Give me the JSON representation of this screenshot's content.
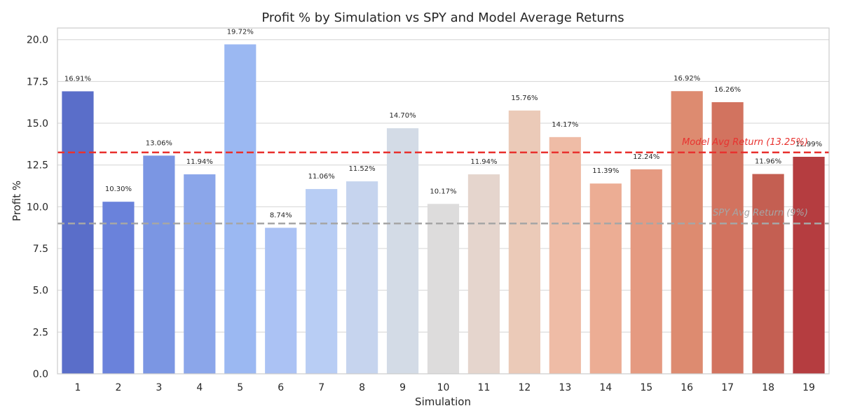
{
  "chart_data": {
    "type": "bar",
    "title": "Profit % by Simulation vs SPY and Model Average Returns",
    "xlabel": "Simulation",
    "ylabel": "Profit %",
    "ylim": [
      0,
      20.7
    ],
    "yticks": [
      0.0,
      2.5,
      5.0,
      7.5,
      10.0,
      12.5,
      15.0,
      17.5,
      20.0
    ],
    "ytick_labels": [
      "0.0",
      "2.5",
      "5.0",
      "7.5",
      "10.0",
      "12.5",
      "15.0",
      "17.5",
      "20.0"
    ],
    "grid": true,
    "categories": [
      "1",
      "2",
      "3",
      "4",
      "5",
      "6",
      "7",
      "8",
      "9",
      "10",
      "11",
      "12",
      "13",
      "14",
      "15",
      "16",
      "17",
      "18",
      "19"
    ],
    "values": [
      16.91,
      10.3,
      13.06,
      11.94,
      19.72,
      8.74,
      11.06,
      11.52,
      14.7,
      10.17,
      11.94,
      15.76,
      14.17,
      11.39,
      12.24,
      16.92,
      16.26,
      11.96,
      12.99
    ],
    "data_labels": [
      "16.91%",
      "10.30%",
      "13.06%",
      "11.94%",
      "19.72%",
      "8.74%",
      "11.06%",
      "11.52%",
      "14.70%",
      "10.17%",
      "11.94%",
      "15.76%",
      "14.17%",
      "11.39%",
      "12.24%",
      "16.92%",
      "16.26%",
      "11.96%",
      "12.99%"
    ],
    "colors": [
      "#5a6ec9",
      "#6a82db",
      "#7b96e3",
      "#8ba6ea",
      "#9bb8f2",
      "#abc2f4",
      "#b8cdf4",
      "#c6d4ee",
      "#d3dbe6",
      "#dddcdc",
      "#e5d5cd",
      "#ebcab8",
      "#efbca6",
      "#ecad94",
      "#e59a81",
      "#dd8b70",
      "#d2735f",
      "#c45f52",
      "#b53d40"
    ],
    "reference_lines": [
      {
        "label": "Model Avg Return (13.25%)",
        "value": 13.25,
        "color": "#e8322f"
      },
      {
        "label": "SPY Avg Return (9%)",
        "value": 9.0,
        "color": "#a6a6a6"
      }
    ]
  }
}
